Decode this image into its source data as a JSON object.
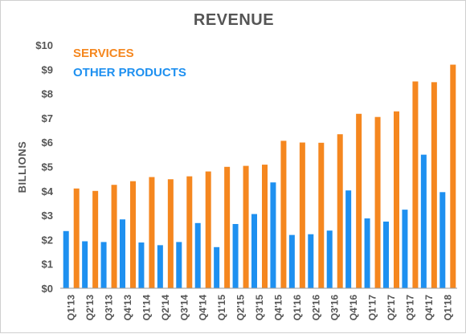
{
  "chart_data": {
    "type": "bar",
    "title": "REVENUE",
    "ylabel": "BILLIONS",
    "xlabel": "",
    "ylim": [
      0,
      10
    ],
    "yticks": [
      0,
      1,
      2,
      3,
      4,
      5,
      6,
      7,
      8,
      9,
      10
    ],
    "ytick_labels": [
      "$0",
      "$1",
      "$2",
      "$3",
      "$4",
      "$5",
      "$6",
      "$7",
      "$8",
      "$9",
      "$10"
    ],
    "grid": false,
    "legend_position": "top-left",
    "categories": [
      "Q1'13",
      "Q2'13",
      "Q3'13",
      "Q4'13",
      "Q1'14",
      "Q2'14",
      "Q3'14",
      "Q4'14",
      "Q1'15",
      "Q2'15",
      "Q3'15",
      "Q4'15",
      "Q1'16",
      "Q2'16",
      "Q3'16",
      "Q4'16",
      "Q1'17",
      "Q2'17",
      "Q3'17",
      "Q4'17",
      "Q1'18"
    ],
    "series": [
      {
        "name": "SERVICES",
        "color": "#f5871f",
        "values": [
          4.1,
          4.0,
          4.25,
          4.4,
          4.57,
          4.48,
          4.6,
          4.8,
          4.99,
          5.03,
          5.08,
          6.06,
          5.99,
          5.98,
          6.33,
          7.17,
          7.04,
          7.27,
          8.5,
          8.47,
          9.19
        ]
      },
      {
        "name": "OTHER PRODUCTS",
        "color": "#1e90f0",
        "values": [
          2.35,
          1.93,
          1.9,
          2.83,
          1.88,
          1.77,
          1.9,
          2.68,
          1.69,
          2.64,
          3.05,
          4.35,
          2.19,
          2.22,
          2.37,
          4.02,
          2.87,
          2.74,
          3.23,
          5.49,
          3.95
        ]
      }
    ]
  }
}
